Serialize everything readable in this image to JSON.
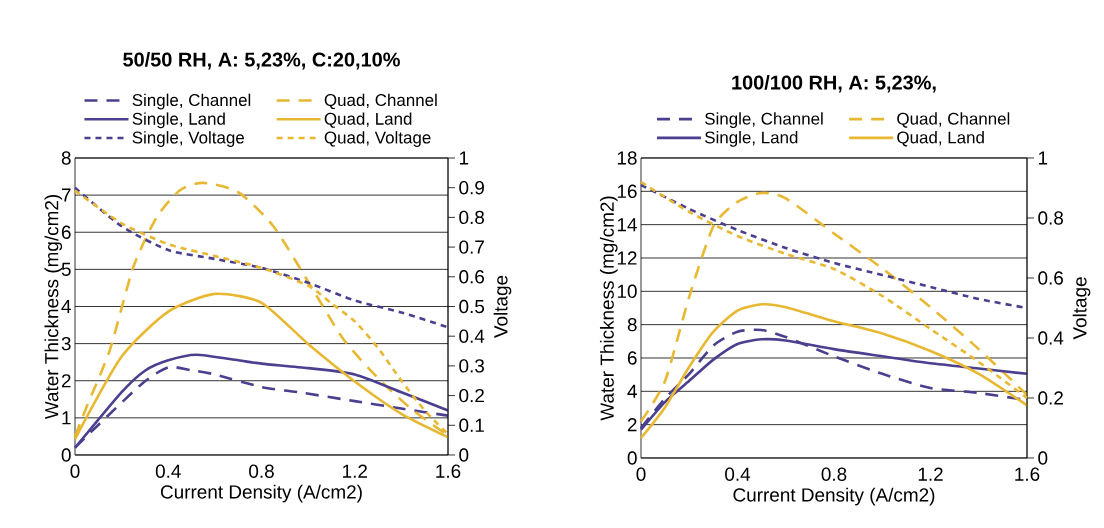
{
  "chart_data": [
    {
      "type": "line",
      "title": "50/50 RH, A: 5,23%, C:20,10%",
      "xlabel": "Current Density (A/cm2)",
      "ylabel": "Water Thickness (mg/cm2)",
      "y2label": "Voltage",
      "xlim": [
        0,
        1.6
      ],
      "xticks": [
        0,
        0.4,
        0.8,
        1.2,
        1.6
      ],
      "ylim": [
        0,
        8
      ],
      "yticks": [
        0,
        1,
        2,
        3,
        4,
        5,
        6,
        7,
        8
      ],
      "y2lim": [
        0,
        1
      ],
      "y2ticks": [
        0,
        0.1,
        0.2,
        0.3,
        0.4,
        0.5,
        0.6,
        0.7,
        0.8,
        0.9,
        1
      ],
      "grid": "y",
      "legend": "top",
      "marker": "none",
      "series": [
        {
          "name": "Single, Channel",
          "color": "#4b3f8f",
          "line_style": "dashed",
          "x": [
            0,
            0.28,
            0.4,
            0.5,
            0.6,
            0.8,
            0.96,
            1.2,
            1.4,
            1.6
          ],
          "values": [
            0.2,
            1.88,
            2.36,
            2.28,
            2.17,
            1.83,
            1.69,
            1.45,
            1.25,
            1.06
          ]
        },
        {
          "name": "Quad, Channel",
          "color": "#e8b833",
          "line_style": "dashed",
          "x": [
            0,
            0.05,
            0.15,
            0.25,
            0.35,
            0.45,
            0.55,
            0.7,
            0.85,
            1.0,
            1.15,
            1.3,
            1.45,
            1.6
          ],
          "values": [
            0.5,
            1.3,
            2.84,
            5.06,
            6.4,
            7.13,
            7.33,
            7.08,
            6.17,
            4.67,
            3.13,
            2.07,
            1.2,
            0.53
          ]
        },
        {
          "name": "Single, Land",
          "color": "#4b3f8f",
          "line_style": "solid",
          "x": [
            0,
            0.2,
            0.3,
            0.4,
            0.52,
            0.7,
            0.8,
            1.0,
            1.2,
            1.4,
            1.6
          ],
          "values": [
            0.19,
            1.69,
            2.27,
            2.55,
            2.7,
            2.55,
            2.46,
            2.34,
            2.17,
            1.69,
            1.2
          ]
        },
        {
          "name": "Quad, Land",
          "color": "#e8b833",
          "line_style": "solid",
          "x": [
            0,
            0.2,
            0.4,
            0.6,
            0.8,
            1.0,
            1.2,
            1.4,
            1.6
          ],
          "values": [
            0.43,
            2.65,
            3.86,
            4.34,
            4.1,
            2.99,
            1.98,
            1.11,
            0.48
          ]
        },
        {
          "name": "Single, Voltage",
          "color": "#4b3f8f",
          "line_style": "dashed",
          "axis": "y2",
          "x": [
            0,
            0.2,
            0.4,
            0.6,
            0.8,
            1.0,
            1.2,
            1.4,
            1.6
          ],
          "values": [
            0.9,
            0.77,
            0.69,
            0.66,
            0.63,
            0.58,
            0.52,
            0.48,
            0.43
          ]
        },
        {
          "name": "Quad, Voltage",
          "color": "#e8b833",
          "line_style": "dashed",
          "axis": "y2",
          "x": [
            0,
            0.2,
            0.4,
            0.6,
            0.8,
            1.0,
            1.1,
            1.2,
            1.3,
            1.4,
            1.5,
            1.6
          ],
          "values": [
            0.89,
            0.78,
            0.71,
            0.67,
            0.63,
            0.57,
            0.51,
            0.45,
            0.36,
            0.25,
            0.15,
            0.07
          ]
        }
      ]
    },
    {
      "type": "line",
      "title": "100/100 RH, A: 5,23%,",
      "xlabel": "Current Density (A/cm2)",
      "ylabel": "Water Thickness (mg/cm2)",
      "y2label": "Voltage",
      "xlim": [
        0,
        1.6
      ],
      "xticks": [
        0,
        0.4,
        0.8,
        1.2,
        1.6
      ],
      "ylim": [
        0,
        18
      ],
      "yticks": [
        0,
        2,
        4,
        6,
        8,
        10,
        12,
        14,
        16,
        18
      ],
      "y2lim": [
        0,
        1
      ],
      "y2ticks": [
        0,
        0.2,
        0.4,
        0.6,
        0.8,
        1
      ],
      "grid": "y",
      "legend": "top",
      "marker": "none",
      "series": [
        {
          "name": "Single, Channel",
          "color": "#4b3f8f",
          "line_style": "dashed",
          "x": [
            0,
            0.1,
            0.2,
            0.3,
            0.4,
            0.5,
            0.6,
            0.8,
            1.0,
            1.2,
            1.4,
            1.6
          ],
          "values": [
            1.8,
            3.58,
            5.05,
            6.74,
            7.58,
            7.68,
            7.26,
            6.1,
            5.05,
            4.2,
            3.9,
            3.47
          ]
        },
        {
          "name": "Quad, Channel",
          "color": "#e8b833",
          "line_style": "dashed",
          "x": [
            0,
            0.1,
            0.2,
            0.3,
            0.4,
            0.5,
            0.6,
            0.8,
            1.0,
            1.2,
            1.4,
            1.6
          ],
          "values": [
            2.2,
            4.63,
            9.68,
            13.9,
            15.37,
            15.9,
            15.58,
            13.47,
            11.37,
            9.05,
            6.53,
            3.79
          ]
        },
        {
          "name": "Single, Land",
          "color": "#4b3f8f",
          "line_style": "solid",
          "x": [
            0,
            0.1,
            0.2,
            0.3,
            0.4,
            0.5,
            0.6,
            0.8,
            1.0,
            1.2,
            1.4,
            1.6
          ],
          "values": [
            1.7,
            3.37,
            4.63,
            5.9,
            6.84,
            7.12,
            7.05,
            6.53,
            6.1,
            5.68,
            5.37,
            5.05
          ]
        },
        {
          "name": "Quad, Land",
          "color": "#e8b833",
          "line_style": "solid",
          "x": [
            0,
            0.1,
            0.2,
            0.3,
            0.4,
            0.5,
            0.6,
            0.8,
            1.0,
            1.2,
            1.4,
            1.6
          ],
          "values": [
            1.2,
            3.05,
            5.47,
            7.58,
            8.84,
            9.22,
            9.05,
            8.21,
            7.47,
            6.42,
            5.05,
            3.16
          ]
        },
        {
          "color": "#4b3f8f",
          "line_style": "dashed",
          "axis": "y2",
          "x": [
            0,
            0.2,
            0.4,
            0.6,
            0.8,
            1.0,
            1.2,
            1.4,
            1.6
          ],
          "values": [
            0.91,
            0.83,
            0.76,
            0.7,
            0.65,
            0.61,
            0.57,
            0.53,
            0.5
          ]
        },
        {
          "color": "#e8b833",
          "line_style": "dashed",
          "axis": "y2",
          "x": [
            0,
            0.2,
            0.4,
            0.6,
            0.8,
            1.0,
            1.2,
            1.4,
            1.6
          ],
          "values": [
            0.92,
            0.82,
            0.74,
            0.68,
            0.63,
            0.54,
            0.43,
            0.32,
            0.2
          ]
        }
      ]
    }
  ]
}
